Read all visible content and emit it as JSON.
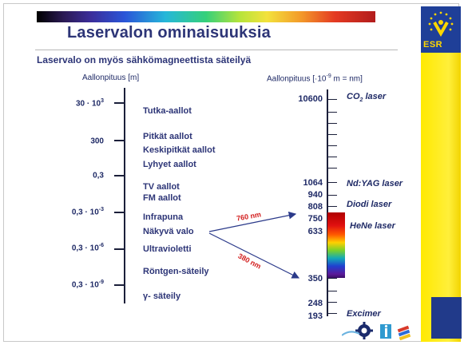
{
  "header": {
    "title": "Laservalon ominaisuuksia",
    "subtitle": "Laservalo on myös sähkömagneettista säteilyä"
  },
  "left_axis": {
    "header": "Aallonpituus [m]",
    "ticks": [
      {
        "base": "30 · 10",
        "exp": "3"
      },
      {
        "base": "300",
        "exp": ""
      },
      {
        "base": "0,3",
        "exp": ""
      },
      {
        "base": "0,3 · 10",
        "exp": "-3"
      },
      {
        "base": "0,3 · 10",
        "exp": "-6"
      },
      {
        "base": "0,3 · 10",
        "exp": "-9"
      }
    ],
    "bands": [
      "Tutka-aallot",
      "Pitkät aallot",
      "Keskipitkät aallot",
      "Lyhyet aallot",
      "TV aallot",
      "FM aallot",
      "Infrapuna",
      "Näkyvä valo",
      "Ultravioletti",
      "Röntgen-säteily",
      "γ- säteily"
    ]
  },
  "right_axis": {
    "header_prefix": "Aallonpituus [·10",
    "header_exp": "-9",
    "header_suffix": " m = nm]",
    "values": [
      "10600",
      "1064",
      "940",
      "808",
      "750",
      "633",
      "350",
      "248",
      "193"
    ],
    "lasers": {
      "co2_prefix": "CO",
      "co2_sub": "2",
      "co2_suffix": " laser",
      "ndyag": "Nd:YAG laser",
      "diodi": "Diodi laser",
      "hene": "HeNe laser",
      "excimer": "Excimer"
    }
  },
  "arrows": {
    "upper": "760 nm",
    "lower": "380 nm"
  },
  "branding": {
    "esr": "ESR"
  },
  "colors": {
    "title": "#2d3577",
    "arrow_label": "#d21b1b",
    "stripe": "#ffe900",
    "esr_blue": "#1f3f98"
  }
}
